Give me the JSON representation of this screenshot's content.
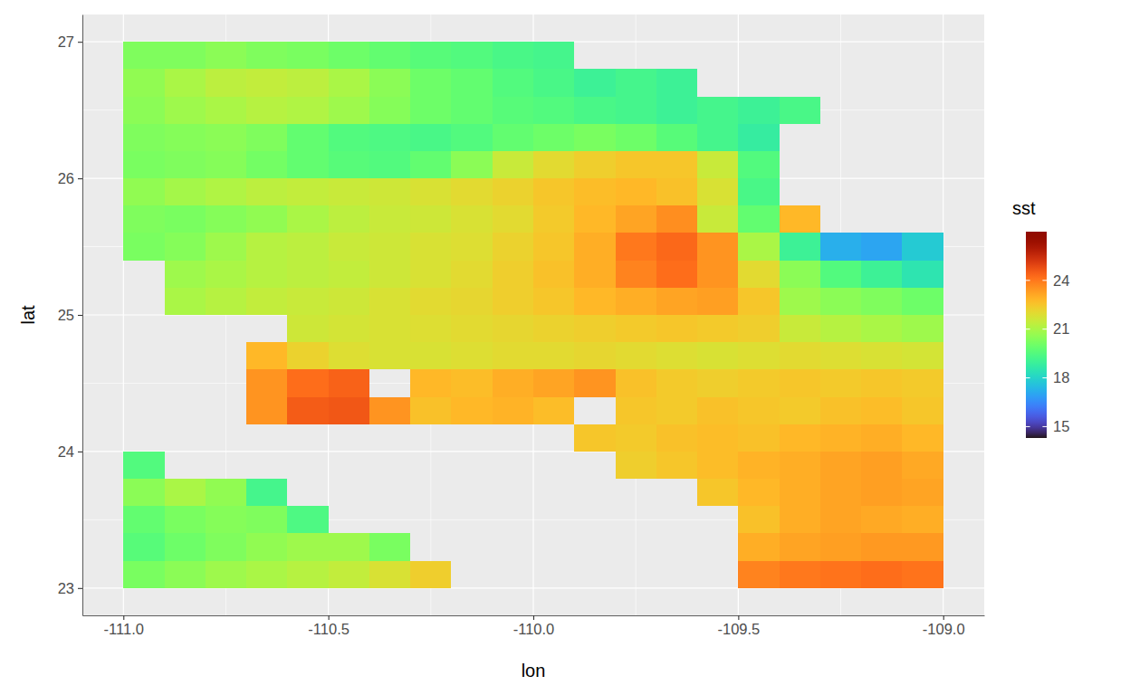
{
  "chart_data": {
    "type": "raster",
    "x_label": "lon",
    "y_label": "lat",
    "x": [
      -110.95,
      -110.85,
      -110.75,
      -110.65,
      -110.55,
      -110.45,
      -110.35,
      -110.25,
      -110.15,
      -110.05,
      -109.95,
      -109.85,
      -109.75,
      -109.65,
      -109.55,
      -109.45,
      -109.35,
      -109.25,
      -109.15,
      -109.05
    ],
    "y": [
      23.1,
      23.3,
      23.5,
      23.7,
      23.9,
      24.1,
      24.3,
      24.5,
      24.7,
      24.9,
      25.1,
      25.3,
      25.5,
      25.7,
      25.9,
      26.1,
      26.3,
      26.5,
      26.7,
      26.9
    ],
    "z": [
      [
        20.2,
        20.5,
        20.8,
        21,
        21.2,
        21.4,
        21.8,
        22.3,
        null,
        null,
        null,
        null,
        null,
        null,
        null,
        23.8,
        24,
        24.1,
        24.2,
        24.1
      ],
      [
        19.6,
        20,
        20.3,
        20.6,
        20.8,
        20.8,
        20.2,
        null,
        null,
        null,
        null,
        null,
        null,
        null,
        null,
        23,
        23.2,
        23.3,
        23.4,
        23.4
      ],
      [
        19.8,
        20.2,
        20.4,
        20.3,
        19.4,
        null,
        null,
        null,
        null,
        null,
        null,
        null,
        null,
        null,
        null,
        22.6,
        23,
        23.2,
        23.1,
        23
      ],
      [
        20.5,
        21,
        20.6,
        19.2,
        null,
        null,
        null,
        null,
        null,
        null,
        null,
        null,
        null,
        null,
        22.5,
        22.8,
        23,
        23.2,
        23.3,
        23.2
      ],
      [
        19.5,
        null,
        null,
        null,
        null,
        null,
        null,
        null,
        null,
        null,
        null,
        null,
        22.3,
        22.5,
        22.7,
        22.9,
        23,
        23.2,
        23.3,
        23.1
      ],
      [
        null,
        null,
        null,
        null,
        null,
        null,
        null,
        null,
        null,
        null,
        null,
        22.5,
        22.4,
        22.6,
        22.7,
        22.6,
        22.8,
        22.9,
        23,
        22.8
      ],
      [
        null,
        null,
        null,
        23.5,
        24.5,
        24.6,
        23.5,
        22.6,
        22.8,
        22.9,
        22.7,
        null,
        22.5,
        22.4,
        22.6,
        22.5,
        22.4,
        22.6,
        22.7,
        22.5
      ],
      [
        null,
        null,
        null,
        23.5,
        24.2,
        24.4,
        null,
        22.8,
        22.7,
        23,
        23.2,
        23.5,
        22.6,
        22.4,
        22.3,
        22.4,
        22.5,
        22.4,
        22.5,
        22.4
      ],
      [
        null,
        null,
        null,
        22.8,
        22.2,
        21.9,
        21.8,
        21.8,
        21.9,
        22,
        22,
        22.1,
        22,
        21.9,
        21.8,
        21.9,
        22,
        21.9,
        21.8,
        21.7
      ],
      [
        null,
        null,
        null,
        null,
        21.6,
        21.7,
        21.8,
        21.9,
        22,
        22.1,
        22.2,
        22.3,
        22.4,
        22.5,
        22.4,
        22.3,
        21.5,
        21.2,
        21,
        20.8
      ],
      [
        null,
        21,
        21.2,
        21.4,
        21.5,
        21.6,
        21.8,
        22,
        22.1,
        22.3,
        22.5,
        22.8,
        23,
        23.2,
        23.3,
        22.5,
        20.8,
        20.5,
        20.3,
        20
      ],
      [
        null,
        20.8,
        21,
        21.2,
        21.3,
        21.4,
        21.6,
        21.8,
        22,
        22.3,
        22.6,
        23,
        23.8,
        24.2,
        23.5,
        22,
        20.5,
        19.5,
        19,
        18.5
      ],
      [
        20.2,
        20.4,
        20.8,
        21.2,
        21.3,
        21.5,
        21.6,
        21.8,
        21.9,
        22.2,
        22.5,
        23,
        24,
        24.3,
        23.5,
        21,
        19,
        17.2,
        17,
        17.8
      ],
      [
        20.3,
        20.2,
        20.4,
        20.6,
        21,
        21.3,
        21.5,
        21.6,
        21.8,
        22,
        22.4,
        22.8,
        23.2,
        23.6,
        21.5,
        19.8,
        22.8,
        null,
        null,
        null
      ],
      [
        20.6,
        20.9,
        21.1,
        21.3,
        21.4,
        21.5,
        21.6,
        21.8,
        22,
        22.2,
        22.5,
        22.7,
        22.8,
        22.6,
        21.8,
        19.3,
        null,
        null,
        null,
        null
      ],
      [
        20.2,
        20.3,
        20.4,
        20.1,
        19.8,
        19.6,
        19.5,
        19.8,
        20.5,
        21.5,
        22,
        22.3,
        22.5,
        22.5,
        21.5,
        19.5,
        null,
        null,
        null,
        null
      ],
      [
        20.3,
        20.4,
        20.5,
        20.3,
        19.8,
        19.5,
        19.4,
        19.3,
        19.5,
        19.8,
        20,
        20.2,
        20,
        19.6,
        19.2,
        18.8,
        null,
        null,
        null,
        null
      ],
      [
        20.5,
        20.8,
        21,
        21.2,
        21.1,
        20.8,
        20.4,
        20,
        19.8,
        19.6,
        19.5,
        19.3,
        19.2,
        19,
        19.2,
        19,
        19.3,
        null,
        null,
        null
      ],
      [
        20.6,
        21,
        21.3,
        21.4,
        21.3,
        21,
        20.5,
        20,
        19.8,
        19.5,
        19.3,
        19,
        19.2,
        19,
        null,
        null,
        null,
        null,
        null,
        null
      ],
      [
        20.3,
        20.3,
        20.5,
        20.3,
        20.2,
        20,
        19.8,
        19.6,
        19.5,
        19.3,
        19.2,
        null,
        null,
        null,
        null,
        null,
        null,
        null,
        null,
        null
      ]
    ],
    "xlim": [
      -111.1,
      -108.9
    ],
    "ylim": [
      22.8,
      27.2
    ],
    "xticks": [
      {
        "value": -111,
        "label": "-111.0"
      },
      {
        "value": -110.5,
        "label": "-110.5"
      },
      {
        "value": -110,
        "label": "-110.0"
      },
      {
        "value": -109.5,
        "label": "-109.5"
      },
      {
        "value": -109,
        "label": "-109.0"
      }
    ],
    "yticks": [
      23,
      24,
      25,
      26,
      27
    ],
    "grid": true,
    "colorbar": {
      "title": "sst",
      "range": [
        14.3,
        27
      ],
      "ticks": [
        15,
        18,
        21,
        24
      ]
    }
  }
}
